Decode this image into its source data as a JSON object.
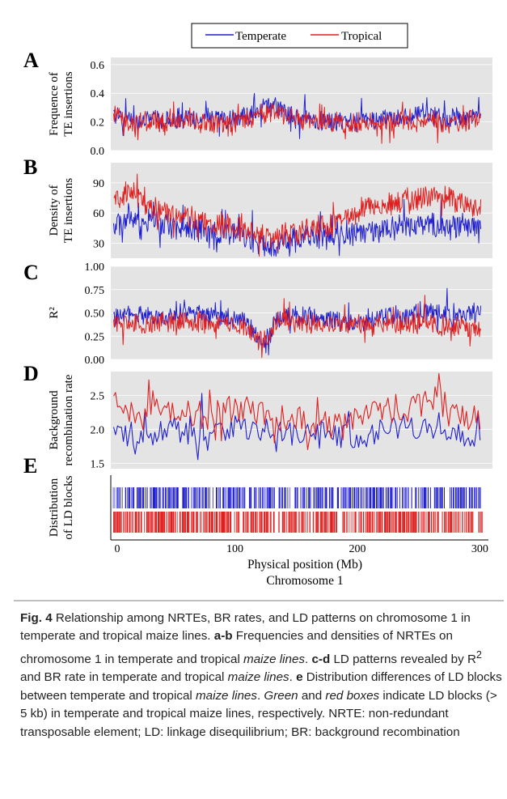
{
  "legend": {
    "temperate": "Temperate",
    "tropical": "Tropical"
  },
  "colors": {
    "temperate": "#1f1fd0",
    "tropical": "#e01f1f",
    "panel_bg": "#e4e4e4"
  },
  "xaxis": {
    "label": "Physical position (Mb)",
    "sublabel": "Chromosome 1",
    "ticks": [
      "0",
      "100",
      "200",
      "300"
    ]
  },
  "chart_data": [
    {
      "panel": "A",
      "type": "line",
      "ylabel": [
        "Frequence of",
        "TE insertions"
      ],
      "ylim": [
        0.0,
        0.65
      ],
      "yticks": [
        "0.0",
        "0.2",
        "0.4",
        "0.6"
      ],
      "xlim": [
        0,
        305
      ],
      "series": [
        {
          "name": "Temperate",
          "x": [
            0,
            15,
            30,
            45,
            60,
            75,
            90,
            105,
            120,
            135,
            150,
            165,
            180,
            195,
            210,
            225,
            240,
            255,
            270,
            285,
            300
          ],
          "values": [
            0.26,
            0.2,
            0.22,
            0.19,
            0.24,
            0.22,
            0.21,
            0.23,
            0.28,
            0.3,
            0.23,
            0.22,
            0.19,
            0.2,
            0.22,
            0.21,
            0.23,
            0.26,
            0.22,
            0.23,
            0.24
          ]
        },
        {
          "name": "Tropical",
          "x": [
            0,
            15,
            30,
            45,
            60,
            75,
            90,
            105,
            120,
            135,
            150,
            165,
            180,
            195,
            210,
            225,
            240,
            255,
            270,
            285,
            300
          ],
          "values": [
            0.25,
            0.19,
            0.21,
            0.18,
            0.21,
            0.2,
            0.19,
            0.21,
            0.24,
            0.27,
            0.21,
            0.2,
            0.18,
            0.19,
            0.2,
            0.19,
            0.21,
            0.22,
            0.2,
            0.2,
            0.21
          ]
        }
      ]
    },
    {
      "panel": "B",
      "type": "line",
      "ylabel": [
        "Density of",
        "TE insertions"
      ],
      "ylim": [
        15,
        110
      ],
      "yticks": [
        "30",
        "60",
        "90"
      ],
      "xlim": [
        0,
        305
      ],
      "series": [
        {
          "name": "Temperate",
          "x": [
            0,
            15,
            30,
            45,
            60,
            75,
            90,
            105,
            120,
            135,
            150,
            165,
            180,
            195,
            210,
            225,
            240,
            255,
            270,
            285,
            300
          ],
          "values": [
            45,
            55,
            50,
            47,
            44,
            42,
            40,
            38,
            30,
            28,
            34,
            38,
            36,
            40,
            42,
            45,
            48,
            47,
            46,
            48,
            42
          ]
        },
        {
          "name": "Tropical",
          "x": [
            0,
            15,
            30,
            45,
            60,
            75,
            90,
            105,
            120,
            135,
            150,
            165,
            180,
            195,
            210,
            225,
            240,
            255,
            270,
            285,
            300
          ],
          "values": [
            70,
            80,
            70,
            62,
            56,
            50,
            48,
            45,
            38,
            35,
            40,
            46,
            48,
            60,
            66,
            70,
            72,
            75,
            78,
            72,
            60
          ]
        }
      ]
    },
    {
      "panel": "C",
      "type": "line",
      "ylabel": [
        "R²"
      ],
      "ylim": [
        0.0,
        1.0
      ],
      "yticks": [
        "0.00",
        "0.25",
        "0.50",
        "0.75",
        "1.00"
      ],
      "xlim": [
        0,
        305
      ],
      "series": [
        {
          "name": "Temperate",
          "x": [
            0,
            15,
            30,
            45,
            60,
            75,
            90,
            105,
            115,
            125,
            135,
            150,
            165,
            180,
            195,
            210,
            225,
            240,
            255,
            270,
            285,
            300
          ],
          "values": [
            0.45,
            0.48,
            0.44,
            0.46,
            0.5,
            0.47,
            0.45,
            0.42,
            0.3,
            0.15,
            0.45,
            0.48,
            0.42,
            0.44,
            0.4,
            0.43,
            0.46,
            0.45,
            0.52,
            0.5,
            0.48,
            0.5
          ]
        },
        {
          "name": "Tropical",
          "x": [
            0,
            15,
            30,
            45,
            60,
            75,
            90,
            105,
            115,
            125,
            135,
            150,
            165,
            180,
            195,
            210,
            225,
            240,
            255,
            270,
            285,
            300
          ],
          "values": [
            0.38,
            0.4,
            0.37,
            0.39,
            0.42,
            0.4,
            0.38,
            0.36,
            0.28,
            0.2,
            0.4,
            0.4,
            0.36,
            0.38,
            0.36,
            0.38,
            0.37,
            0.36,
            0.4,
            0.36,
            0.35,
            0.33
          ]
        }
      ]
    },
    {
      "panel": "D",
      "type": "line",
      "ylabel": [
        "Background",
        "recombination rate"
      ],
      "ylim": [
        1.42,
        2.85
      ],
      "yticks": [
        "1.5",
        "2.0",
        "2.5"
      ],
      "xlim": [
        0,
        305
      ],
      "series": [
        {
          "name": "Temperate",
          "x": [
            0,
            20,
            40,
            60,
            80,
            100,
            120,
            140,
            160,
            180,
            200,
            220,
            240,
            260,
            280,
            300
          ],
          "values": [
            1.95,
            1.88,
            2.02,
            2.0,
            1.9,
            2.05,
            2.0,
            1.95,
            1.92,
            1.95,
            1.85,
            1.98,
            2.0,
            2.05,
            1.95,
            1.85
          ]
        },
        {
          "name": "Tropical",
          "x": [
            0,
            20,
            40,
            60,
            80,
            100,
            120,
            140,
            160,
            180,
            200,
            220,
            240,
            260,
            280,
            300
          ],
          "values": [
            2.4,
            2.2,
            2.3,
            2.25,
            2.15,
            2.3,
            2.25,
            2.1,
            2.1,
            2.0,
            2.15,
            2.35,
            2.25,
            2.45,
            2.3,
            2.1
          ]
        }
      ]
    },
    {
      "panel": "E",
      "type": "table",
      "ylabel": [
        "Distribution",
        "of LD blocks"
      ],
      "series": [
        {
          "name": "Temperate",
          "blocks_Mb": [
            [
              0,
              133
            ],
            [
              135,
              260
            ],
            [
              263,
              301
            ]
          ]
        },
        {
          "name": "Tropical",
          "blocks_Mb": [
            [
              0,
              133
            ],
            [
              136,
              184
            ],
            [
              188,
              302
            ]
          ]
        }
      ]
    }
  ],
  "caption": {
    "fig_label": "Fig. 4",
    "s1": " Relationship among NRTEs, BR rates, and LD patterns on chromosome 1 in temperate and tropical maize lines. ",
    "ab": "a-b",
    "s2": " Frequencies and densities of NRTEs on chromosome 1 in temperate and tropical ",
    "ital1": "maize lines",
    "s3": ". ",
    "cd": "c-d",
    "s4": " LD patterns revealed by R",
    "sup": "2",
    "s5": " and BR rate in temperate and tropical ",
    "ital2": "maize lines",
    "s6": ". ",
    "e": "e",
    "s7": " Distribution differences of LD blocks between temperate and tropical ",
    "ital3": "maize lines",
    "s8": ". ",
    "ital4": "Green",
    "s9": " and ",
    "ital5": "red boxes",
    "s10": " indicate LD blocks (> 5 kb) in temperate and tropical maize lines, respectively. NRTE: non-redundant transposable element; LD: linkage disequilibrium; BR: background recombination"
  }
}
